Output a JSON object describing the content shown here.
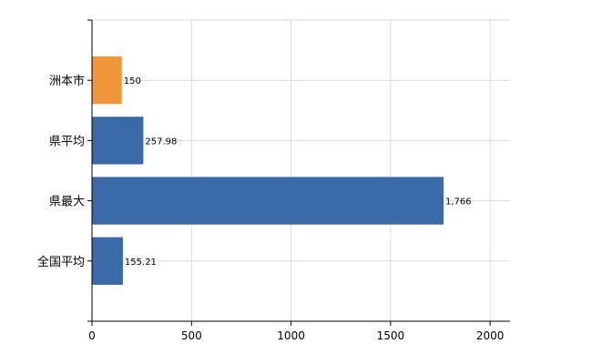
{
  "chart_data": {
    "type": "bar",
    "orientation": "horizontal",
    "categories": [
      "洲本市",
      "県平均",
      "県最大",
      "全国平均"
    ],
    "values": [
      150,
      257.98,
      1766,
      155.21
    ],
    "data_labels": [
      "150",
      "257.98",
      "1,766",
      "155.21"
    ],
    "bar_colors": [
      "#f0963a",
      "#3b6aa8",
      "#3b6aa8",
      "#3b6aa8"
    ],
    "xlim": [
      0,
      2100
    ],
    "xticks": [
      0,
      500,
      1000,
      1500,
      2000
    ],
    "xtick_labels": [
      "0",
      "500",
      "1000",
      "1500",
      "2000"
    ],
    "grid": true,
    "legend": "none"
  }
}
